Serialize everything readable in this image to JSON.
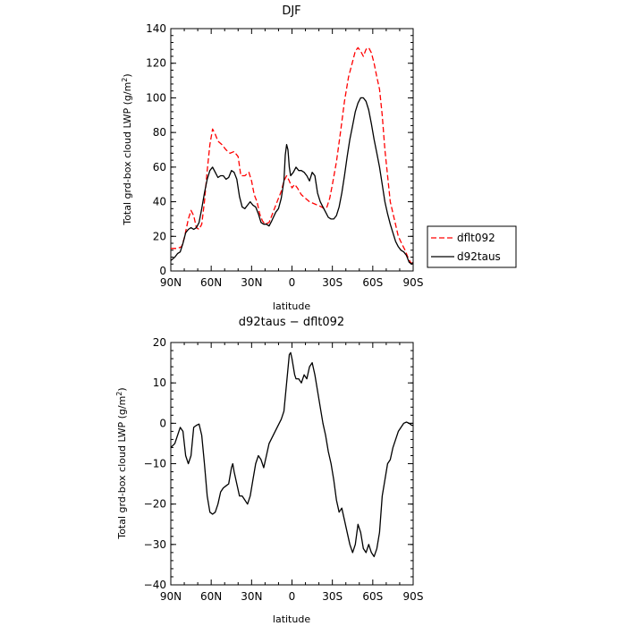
{
  "chart_data": [
    {
      "type": "line",
      "title": "DJF",
      "xlabel": "latitude",
      "ylabel": "Total grd-box cloud LWP (g/m²)",
      "x_tick_values": [
        90,
        60,
        30,
        0,
        -30,
        -60,
        -90
      ],
      "x_tick_labels": [
        "90N",
        "60N",
        "30N",
        "0",
        "30S",
        "60S",
        "90S"
      ],
      "xlim": [
        90,
        -90
      ],
      "ylim": [
        0,
        140
      ],
      "y_ticks": [
        0,
        20,
        40,
        60,
        80,
        100,
        120,
        140
      ],
      "grid": false,
      "legend_position": "right",
      "series": [
        {
          "name": "dflt092",
          "color": "#ff0000",
          "dash": "dashed",
          "points": [
            [
              90,
              13
            ],
            [
              85,
              13
            ],
            [
              82,
              14
            ],
            [
              80,
              19
            ],
            [
              77,
              30
            ],
            [
              75,
              35
            ],
            [
              73,
              32
            ],
            [
              71,
              25
            ],
            [
              69,
              24
            ],
            [
              67,
              27
            ],
            [
              65,
              40
            ],
            [
              63,
              58
            ],
            [
              61,
              73
            ],
            [
              59,
              82
            ],
            [
              57,
              79
            ],
            [
              55,
              75
            ],
            [
              52,
              73
            ],
            [
              49,
              70
            ],
            [
              46,
              68
            ],
            [
              43,
              69
            ],
            [
              40,
              66
            ],
            [
              38,
              55
            ],
            [
              35,
              55
            ],
            [
              32,
              57
            ],
            [
              30,
              52
            ],
            [
              28,
              44
            ],
            [
              26,
              40
            ],
            [
              24,
              33
            ],
            [
              22,
              29
            ],
            [
              20,
              27
            ],
            [
              17,
              28
            ],
            [
              15,
              32
            ],
            [
              12,
              38
            ],
            [
              10,
              42
            ],
            [
              8,
              46
            ],
            [
              6,
              52
            ],
            [
              4,
              55
            ],
            [
              2,
              52
            ],
            [
              0,
              48
            ],
            [
              -2,
              50
            ],
            [
              -4,
              48
            ],
            [
              -7,
              44
            ],
            [
              -10,
              42
            ],
            [
              -13,
              40
            ],
            [
              -16,
              39
            ],
            [
              -19,
              38
            ],
            [
              -22,
              37
            ],
            [
              -24,
              36
            ],
            [
              -26,
              37
            ],
            [
              -28,
              42
            ],
            [
              -30,
              50
            ],
            [
              -33,
              63
            ],
            [
              -36,
              80
            ],
            [
              -39,
              98
            ],
            [
              -42,
              112
            ],
            [
              -45,
              121
            ],
            [
              -47,
              127
            ],
            [
              -49,
              129
            ],
            [
              -51,
              127
            ],
            [
              -53,
              124
            ],
            [
              -55,
              128
            ],
            [
              -57,
              129
            ],
            [
              -59,
              126
            ],
            [
              -61,
              120
            ],
            [
              -63,
              112
            ],
            [
              -65,
              105
            ],
            [
              -67,
              90
            ],
            [
              -69,
              70
            ],
            [
              -71,
              55
            ],
            [
              -73,
              40
            ],
            [
              -76,
              30
            ],
            [
              -79,
              20
            ],
            [
              -82,
              15
            ],
            [
              -84,
              12
            ],
            [
              -86,
              8
            ],
            [
              -88,
              5
            ],
            [
              -90,
              4
            ]
          ]
        },
        {
          "name": "d92taus",
          "color": "#000000",
          "dash": "solid",
          "points": [
            [
              90,
              6
            ],
            [
              87,
              8
            ],
            [
              85,
              10
            ],
            [
              83,
              11
            ],
            [
              81,
              16
            ],
            [
              79,
              22
            ],
            [
              77,
              24
            ],
            [
              75,
              25
            ],
            [
              73,
              24
            ],
            [
              71,
              25
            ],
            [
              69,
              28
            ],
            [
              67,
              36
            ],
            [
              65,
              45
            ],
            [
              63,
              53
            ],
            [
              61,
              58
            ],
            [
              59,
              60
            ],
            [
              57,
              57
            ],
            [
              55,
              54
            ],
            [
              53,
              55
            ],
            [
              51,
              55
            ],
            [
              49,
              53
            ],
            [
              47,
              54
            ],
            [
              45,
              58
            ],
            [
              43,
              57
            ],
            [
              41,
              53
            ],
            [
              39,
              43
            ],
            [
              37,
              37
            ],
            [
              35,
              36
            ],
            [
              33,
              38
            ],
            [
              31,
              40
            ],
            [
              29,
              38
            ],
            [
              27,
              37
            ],
            [
              25,
              33
            ],
            [
              23,
              28
            ],
            [
              21,
              27
            ],
            [
              19,
              27
            ],
            [
              17,
              26
            ],
            [
              15,
              29
            ],
            [
              12,
              34
            ],
            [
              10,
              36
            ],
            [
              8,
              42
            ],
            [
              6,
              52
            ],
            [
              5,
              67
            ],
            [
              4,
              73
            ],
            [
              3,
              70
            ],
            [
              2,
              60
            ],
            [
              1,
              55
            ],
            [
              -1,
              57
            ],
            [
              -3,
              60
            ],
            [
              -5,
              58
            ],
            [
              -7,
              58
            ],
            [
              -9,
              57
            ],
            [
              -11,
              55
            ],
            [
              -13,
              52
            ],
            [
              -15,
              57
            ],
            [
              -17,
              55
            ],
            [
              -19,
              45
            ],
            [
              -21,
              40
            ],
            [
              -23,
              37
            ],
            [
              -25,
              34
            ],
            [
              -27,
              31
            ],
            [
              -29,
              30
            ],
            [
              -31,
              30
            ],
            [
              -33,
              32
            ],
            [
              -35,
              37
            ],
            [
              -37,
              45
            ],
            [
              -39,
              55
            ],
            [
              -41,
              66
            ],
            [
              -43,
              76
            ],
            [
              -45,
              84
            ],
            [
              -47,
              92
            ],
            [
              -49,
              97
            ],
            [
              -51,
              100
            ],
            [
              -53,
              100
            ],
            [
              -55,
              98
            ],
            [
              -57,
              93
            ],
            [
              -59,
              85
            ],
            [
              -61,
              76
            ],
            [
              -63,
              68
            ],
            [
              -65,
              60
            ],
            [
              -67,
              50
            ],
            [
              -69,
              40
            ],
            [
              -71,
              33
            ],
            [
              -73,
              27
            ],
            [
              -75,
              22
            ],
            [
              -77,
              17
            ],
            [
              -79,
              14
            ],
            [
              -81,
              12
            ],
            [
              -83,
              11
            ],
            [
              -85,
              9
            ],
            [
              -87,
              5
            ],
            [
              -89,
              4
            ],
            [
              -90,
              5
            ]
          ]
        }
      ]
    },
    {
      "type": "line",
      "title": "d92taus − dflt092",
      "xlabel": "latitude",
      "ylabel": "Total grd-box cloud LWP (g/m²)",
      "x_tick_values": [
        90,
        60,
        30,
        0,
        -30,
        -60,
        -90
      ],
      "x_tick_labels": [
        "90N",
        "60N",
        "30N",
        "0",
        "30S",
        "60S",
        "90S"
      ],
      "xlim": [
        90,
        -90
      ],
      "ylim": [
        -40,
        20
      ],
      "y_ticks": [
        -40,
        -30,
        -20,
        -10,
        0,
        10,
        20
      ],
      "grid": false,
      "series": [
        {
          "color": "#000000",
          "dash": "solid",
          "points": [
            [
              90,
              -6
            ],
            [
              87,
              -5
            ],
            [
              85,
              -3
            ],
            [
              83,
              -1
            ],
            [
              81,
              -2
            ],
            [
              79,
              -8
            ],
            [
              77,
              -10
            ],
            [
              75,
              -8
            ],
            [
              73,
              -1
            ],
            [
              71,
              -0.5
            ],
            [
              69,
              -0.2
            ],
            [
              67,
              -3
            ],
            [
              65,
              -10
            ],
            [
              63,
              -18
            ],
            [
              61,
              -22
            ],
            [
              59,
              -22.5
            ],
            [
              57,
              -22
            ],
            [
              55,
              -20
            ],
            [
              53,
              -17
            ],
            [
              51,
              -16
            ],
            [
              49,
              -15.5
            ],
            [
              47,
              -15
            ],
            [
              45,
              -11
            ],
            [
              44,
              -10
            ],
            [
              43,
              -12
            ],
            [
              41,
              -15
            ],
            [
              39,
              -18
            ],
            [
              37,
              -18
            ],
            [
              35,
              -19
            ],
            [
              33,
              -20
            ],
            [
              31,
              -18
            ],
            [
              29,
              -14
            ],
            [
              27,
              -10
            ],
            [
              25,
              -8
            ],
            [
              23,
              -9
            ],
            [
              21,
              -11
            ],
            [
              19,
              -8
            ],
            [
              17,
              -5
            ],
            [
              14,
              -3
            ],
            [
              11,
              -1
            ],
            [
              8,
              1
            ],
            [
              6,
              3
            ],
            [
              4,
              10
            ],
            [
              2,
              17
            ],
            [
              1,
              17.5
            ],
            [
              0,
              16
            ],
            [
              -2,
              12
            ],
            [
              -3,
              11
            ],
            [
              -5,
              11
            ],
            [
              -7,
              10
            ],
            [
              -9,
              12
            ],
            [
              -11,
              11
            ],
            [
              -13,
              14
            ],
            [
              -15,
              15
            ],
            [
              -17,
              12
            ],
            [
              -19,
              8
            ],
            [
              -21,
              4
            ],
            [
              -23,
              0
            ],
            [
              -25,
              -3
            ],
            [
              -27,
              -7
            ],
            [
              -29,
              -10
            ],
            [
              -31,
              -14
            ],
            [
              -33,
              -19
            ],
            [
              -35,
              -22
            ],
            [
              -37,
              -21
            ],
            [
              -39,
              -24
            ],
            [
              -41,
              -27
            ],
            [
              -43,
              -30
            ],
            [
              -45,
              -32
            ],
            [
              -47,
              -30
            ],
            [
              -49,
              -25
            ],
            [
              -51,
              -27
            ],
            [
              -53,
              -31
            ],
            [
              -55,
              -32
            ],
            [
              -57,
              -30
            ],
            [
              -59,
              -32
            ],
            [
              -61,
              -33
            ],
            [
              -63,
              -31
            ],
            [
              -65,
              -27
            ],
            [
              -67,
              -18
            ],
            [
              -69,
              -14
            ],
            [
              -71,
              -10
            ],
            [
              -73,
              -9
            ],
            [
              -75,
              -6
            ],
            [
              -77,
              -4
            ],
            [
              -79,
              -2
            ],
            [
              -81,
              -1
            ],
            [
              -83,
              0
            ],
            [
              -85,
              0.3
            ],
            [
              -87,
              0
            ],
            [
              -89,
              -0.5
            ],
            [
              -90,
              -0.5
            ]
          ]
        }
      ]
    }
  ]
}
